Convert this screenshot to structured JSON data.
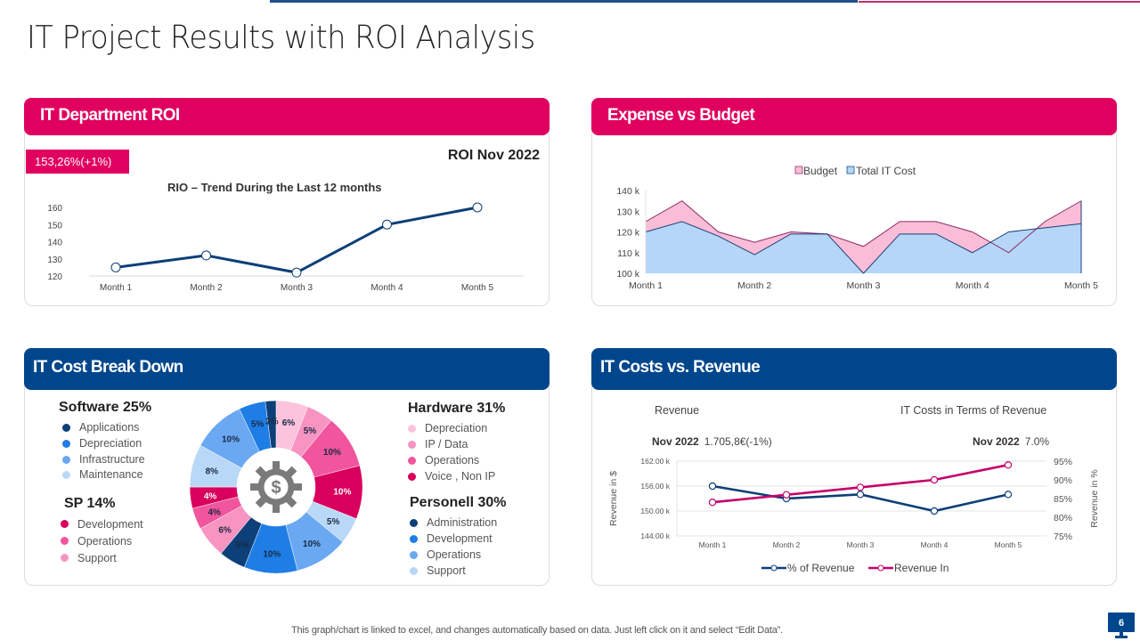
{
  "page": {
    "title": "IT Project Results with ROI Analysis",
    "footer_note": "This graph/chart is linked to excel,  and changes automatically based on data. Just left click on it and select “Edit Data”.",
    "page_number": "6"
  },
  "colors": {
    "pink": "#e0005f",
    "navy": "#00468c",
    "line_navy": "#0d3f78",
    "line_pink": "#c4006a",
    "budget_fill": "#f9bdd8",
    "cost_fill": "#b5d6f7"
  },
  "roi_panel": {
    "title": "IT Department ROI",
    "badge": "153,26%(+1%)",
    "period_label": "ROI Nov 2022",
    "chart_title": "RIO – Trend During the Last 12 months"
  },
  "expense_panel": {
    "title": "Expense vs Budget"
  },
  "breakdown_panel": {
    "title": "IT Cost Break Down",
    "center_icon": "gear-dollar-icon",
    "groups": [
      {
        "title": "Software 25%",
        "items": [
          {
            "label": "Applications",
            "color": "#0d3f78"
          },
          {
            "label": "Depreciation",
            "color": "#1e7ee6"
          },
          {
            "label": "Infrastructure",
            "color": "#6aa8f2"
          },
          {
            "label": "Maintenance",
            "color": "#b9d8f7"
          }
        ]
      },
      {
        "title": "SP 14%",
        "items": [
          {
            "label": "Development",
            "color": "#d8005c"
          },
          {
            "label": "Operations",
            "color": "#f0559d"
          },
          {
            "label": "Support",
            "color": "#f794c2"
          }
        ]
      },
      {
        "title": "Hardware 31%",
        "items": [
          {
            "label": "Depreciation",
            "color": "#fbc3dc"
          },
          {
            "label": "IP / Data",
            "color": "#f794c2"
          },
          {
            "label": "Operations",
            "color": "#f0559d"
          },
          {
            "label": "Voice , Non IP",
            "color": "#d8005c"
          }
        ]
      },
      {
        "title": "Personell 30%",
        "items": [
          {
            "label": "Administration",
            "color": "#0d3f78"
          },
          {
            "label": "Development",
            "color": "#1e7ee6"
          },
          {
            "label": "Operations",
            "color": "#6aa8f2"
          },
          {
            "label": "Support",
            "color": "#b9d8f7"
          }
        ]
      }
    ]
  },
  "revenue_panel": {
    "title": "IT Costs vs. Revenue",
    "left_heading": "Revenue",
    "right_heading": "IT Costs in Terms  of Revenue",
    "left_period": "Nov  2022",
    "left_value": "1.705,8€(-1%)",
    "right_period": "Nov  2022",
    "right_value": "7.0%"
  },
  "chart_data": [
    {
      "id": "roi_trend",
      "type": "line",
      "title": "RIO – Trend During the Last 12 months",
      "categories": [
        "Month 1",
        "Month 2",
        "Month 3",
        "Month 4",
        "Month 5"
      ],
      "values": [
        125,
        132,
        122,
        150,
        160
      ],
      "yticks": [
        120,
        130,
        140,
        150,
        160
      ],
      "ylim": [
        120,
        160
      ],
      "xlabel": "",
      "ylabel": "",
      "grid": false
    },
    {
      "id": "expense_budget",
      "type": "area",
      "legend": [
        "Budget",
        "Total IT Cost"
      ],
      "legend_position": "top-center",
      "x_labels": [
        "Month 1",
        "",
        "",
        "Month 2",
        "",
        "",
        "Month 3",
        "",
        "",
        "Month  4",
        "",
        "",
        "Month 5"
      ],
      "series": [
        {
          "name": "Budget",
          "values": [
            125,
            135,
            120,
            115,
            120,
            119,
            113,
            125,
            125,
            120,
            110,
            125,
            135
          ]
        },
        {
          "name": "Total IT Cost",
          "values": [
            120,
            125,
            118,
            109,
            119,
            119,
            100,
            119,
            119,
            110,
            120,
            122,
            124
          ]
        }
      ],
      "yticks": [
        "100 k",
        "110 k",
        "120 k",
        "130 k",
        "140 k"
      ],
      "ylim": [
        100,
        140
      ]
    },
    {
      "id": "cost_breakdown",
      "type": "pie",
      "donut": true,
      "slices": [
        {
          "group": "Hardware",
          "label": "Depreciation",
          "value": 6,
          "color": "#fbc3dc"
        },
        {
          "group": "Hardware",
          "label": "IP / Data",
          "value": 5,
          "color": "#f794c2"
        },
        {
          "group": "Hardware",
          "label": "Operations",
          "value": 10,
          "color": "#f0559d"
        },
        {
          "group": "Hardware",
          "label": "Voice , Non IP",
          "value": 10,
          "color": "#d8005c"
        },
        {
          "group": "Personell",
          "label": "Support",
          "value": 5,
          "color": "#b9d8f7"
        },
        {
          "group": "Personell",
          "label": "Operations",
          "value": 10,
          "color": "#6aa8f2"
        },
        {
          "group": "Personell",
          "label": "Development",
          "value": 10,
          "color": "#1e7ee6"
        },
        {
          "group": "Personell",
          "label": "Administration",
          "value": 5,
          "color": "#0d3f78"
        },
        {
          "group": "SP",
          "label": "Support",
          "value": 6,
          "color": "#f794c2"
        },
        {
          "group": "SP",
          "label": "Operations",
          "value": 4,
          "color": "#f0559d"
        },
        {
          "group": "SP",
          "label": "Development",
          "value": 4,
          "color": "#d8005c"
        },
        {
          "group": "Software",
          "label": "Maintenance",
          "value": 8,
          "color": "#b9d8f7"
        },
        {
          "group": "Software",
          "label": "Infrastructure",
          "value": 10,
          "color": "#6aa8f2"
        },
        {
          "group": "Software",
          "label": "Depreciation",
          "value": 5,
          "color": "#1e7ee6"
        },
        {
          "group": "Software",
          "label": "Applications",
          "value": 2,
          "color": "#0d3f78"
        }
      ]
    },
    {
      "id": "costs_vs_revenue",
      "type": "line",
      "categories": [
        "Month 1",
        "Month 2",
        "Month 3",
        "Month 4",
        "Month 5"
      ],
      "series": [
        {
          "name": "% of Revenue",
          "axis": "left",
          "values": [
            156,
            153,
            154,
            150,
            154
          ],
          "color": "#0d3f78"
        },
        {
          "name": "Revenue In",
          "axis": "right",
          "values": [
            84,
            86,
            88,
            90,
            94
          ],
          "color": "#c4006a"
        }
      ],
      "ylabel": "Revenue in $",
      "ylabel_right": "Revenue in %",
      "yticks": [
        "144.00 k",
        "150.00 k",
        "156.00 k",
        "162.00 k"
      ],
      "ylim": [
        144,
        162
      ],
      "yticks_right": [
        "75%",
        "80%",
        "85%",
        "90%",
        "95%"
      ],
      "ylim_right": [
        75,
        95
      ],
      "legend_position": "bottom",
      "grid": true
    }
  ]
}
